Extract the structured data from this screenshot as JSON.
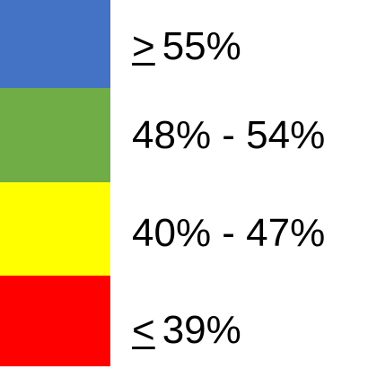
{
  "legend": {
    "items": [
      {
        "symbol": ">",
        "label": "55%",
        "color": "#4472c4"
      },
      {
        "symbol": "",
        "label": "48% - 54%",
        "color": "#70ad47"
      },
      {
        "symbol": "",
        "label": "40% - 47%",
        "color": "#ffff00"
      },
      {
        "symbol": "<",
        "label": "39%",
        "color": "#ff0000"
      }
    ]
  }
}
